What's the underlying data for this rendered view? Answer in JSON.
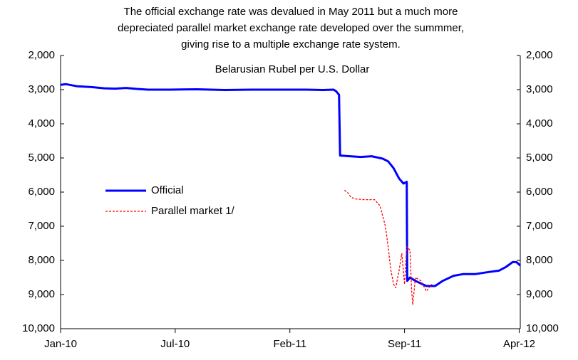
{
  "chart_data": {
    "type": "line",
    "title": [
      "The official exchange rate was devalued in May 2011 but a much more",
      "depreciated parallel market exchange rate developed over the summmer,",
      "giving rise to a multiple exchange rate system."
    ],
    "subtitle": "Belarusian Rubel per U.S. Dollar",
    "reversed_y": true,
    "xlim": [
      0,
      842
    ],
    "xticks": [
      {
        "value": 0,
        "label": "Jan-10"
      },
      {
        "value": 210,
        "label": "Jul-10"
      },
      {
        "value": 420,
        "label": "Feb-11"
      },
      {
        "value": 630,
        "label": "Sep-11"
      },
      {
        "value": 840,
        "label": "Apr-12"
      }
    ],
    "ylim": [
      2000,
      10000
    ],
    "yticks": [
      {
        "value": 2000,
        "label": "2,000"
      },
      {
        "value": 3000,
        "label": "3,000"
      },
      {
        "value": 4000,
        "label": "4,000"
      },
      {
        "value": 5000,
        "label": "5,000"
      },
      {
        "value": 6000,
        "label": "6,000"
      },
      {
        "value": 7000,
        "label": "7,000"
      },
      {
        "value": 8000,
        "label": "8,000"
      },
      {
        "value": 9000,
        "label": "9,000"
      },
      {
        "value": 10000,
        "label": "10,000"
      }
    ],
    "y2lim": [
      2000,
      10000
    ],
    "y2ticks": [
      {
        "value": 2000,
        "label": "2,000"
      },
      {
        "value": 3000,
        "label": "3,000"
      },
      {
        "value": 4000,
        "label": "4,000"
      },
      {
        "value": 5000,
        "label": "5,000"
      },
      {
        "value": 6000,
        "label": "6,000"
      },
      {
        "value": 7000,
        "label": "7,000"
      },
      {
        "value": 8000,
        "label": "8,000"
      },
      {
        "value": 9000,
        "label": "9,000"
      },
      {
        "value": 10000,
        "label": "10,000"
      }
    ],
    "series": [
      {
        "name": "Official",
        "color": "#0000ff",
        "dashed": false,
        "x": [
          0,
          10,
          30,
          60,
          80,
          100,
          120,
          140,
          160,
          200,
          250,
          300,
          350,
          400,
          450,
          480,
          500,
          505,
          510,
          512,
          530,
          550,
          570,
          590,
          600,
          610,
          620,
          628,
          634,
          635,
          640,
          650,
          670,
          686,
          700,
          720,
          738,
          760,
          780,
          803,
          815,
          828,
          835,
          842
        ],
        "values": [
          2860,
          2840,
          2900,
          2930,
          2960,
          2970,
          2950,
          2980,
          3000,
          3000,
          2990,
          3010,
          3000,
          3000,
          3000,
          3010,
          3000,
          3050,
          3150,
          4930,
          4950,
          4970,
          4950,
          5020,
          5100,
          5300,
          5600,
          5750,
          5700,
          8600,
          8500,
          8600,
          8750,
          8750,
          8600,
          8450,
          8400,
          8400,
          8350,
          8300,
          8200,
          8050,
          8050,
          8150
        ]
      },
      {
        "name": "Parallel market 1/",
        "color": "#ff0000",
        "dashed": true,
        "x": [
          520,
          525,
          532,
          540,
          555,
          575,
          585,
          595,
          600,
          605,
          610,
          614,
          620,
          625,
          630,
          634,
          640,
          643,
          645,
          650,
          660,
          670,
          680
        ],
        "values": [
          5950,
          6000,
          6150,
          6200,
          6220,
          6220,
          6400,
          7000,
          7600,
          8300,
          8700,
          8800,
          8300,
          7800,
          8700,
          7600,
          7700,
          8900,
          9300,
          8500,
          8600,
          8900,
          8700
        ]
      }
    ]
  }
}
